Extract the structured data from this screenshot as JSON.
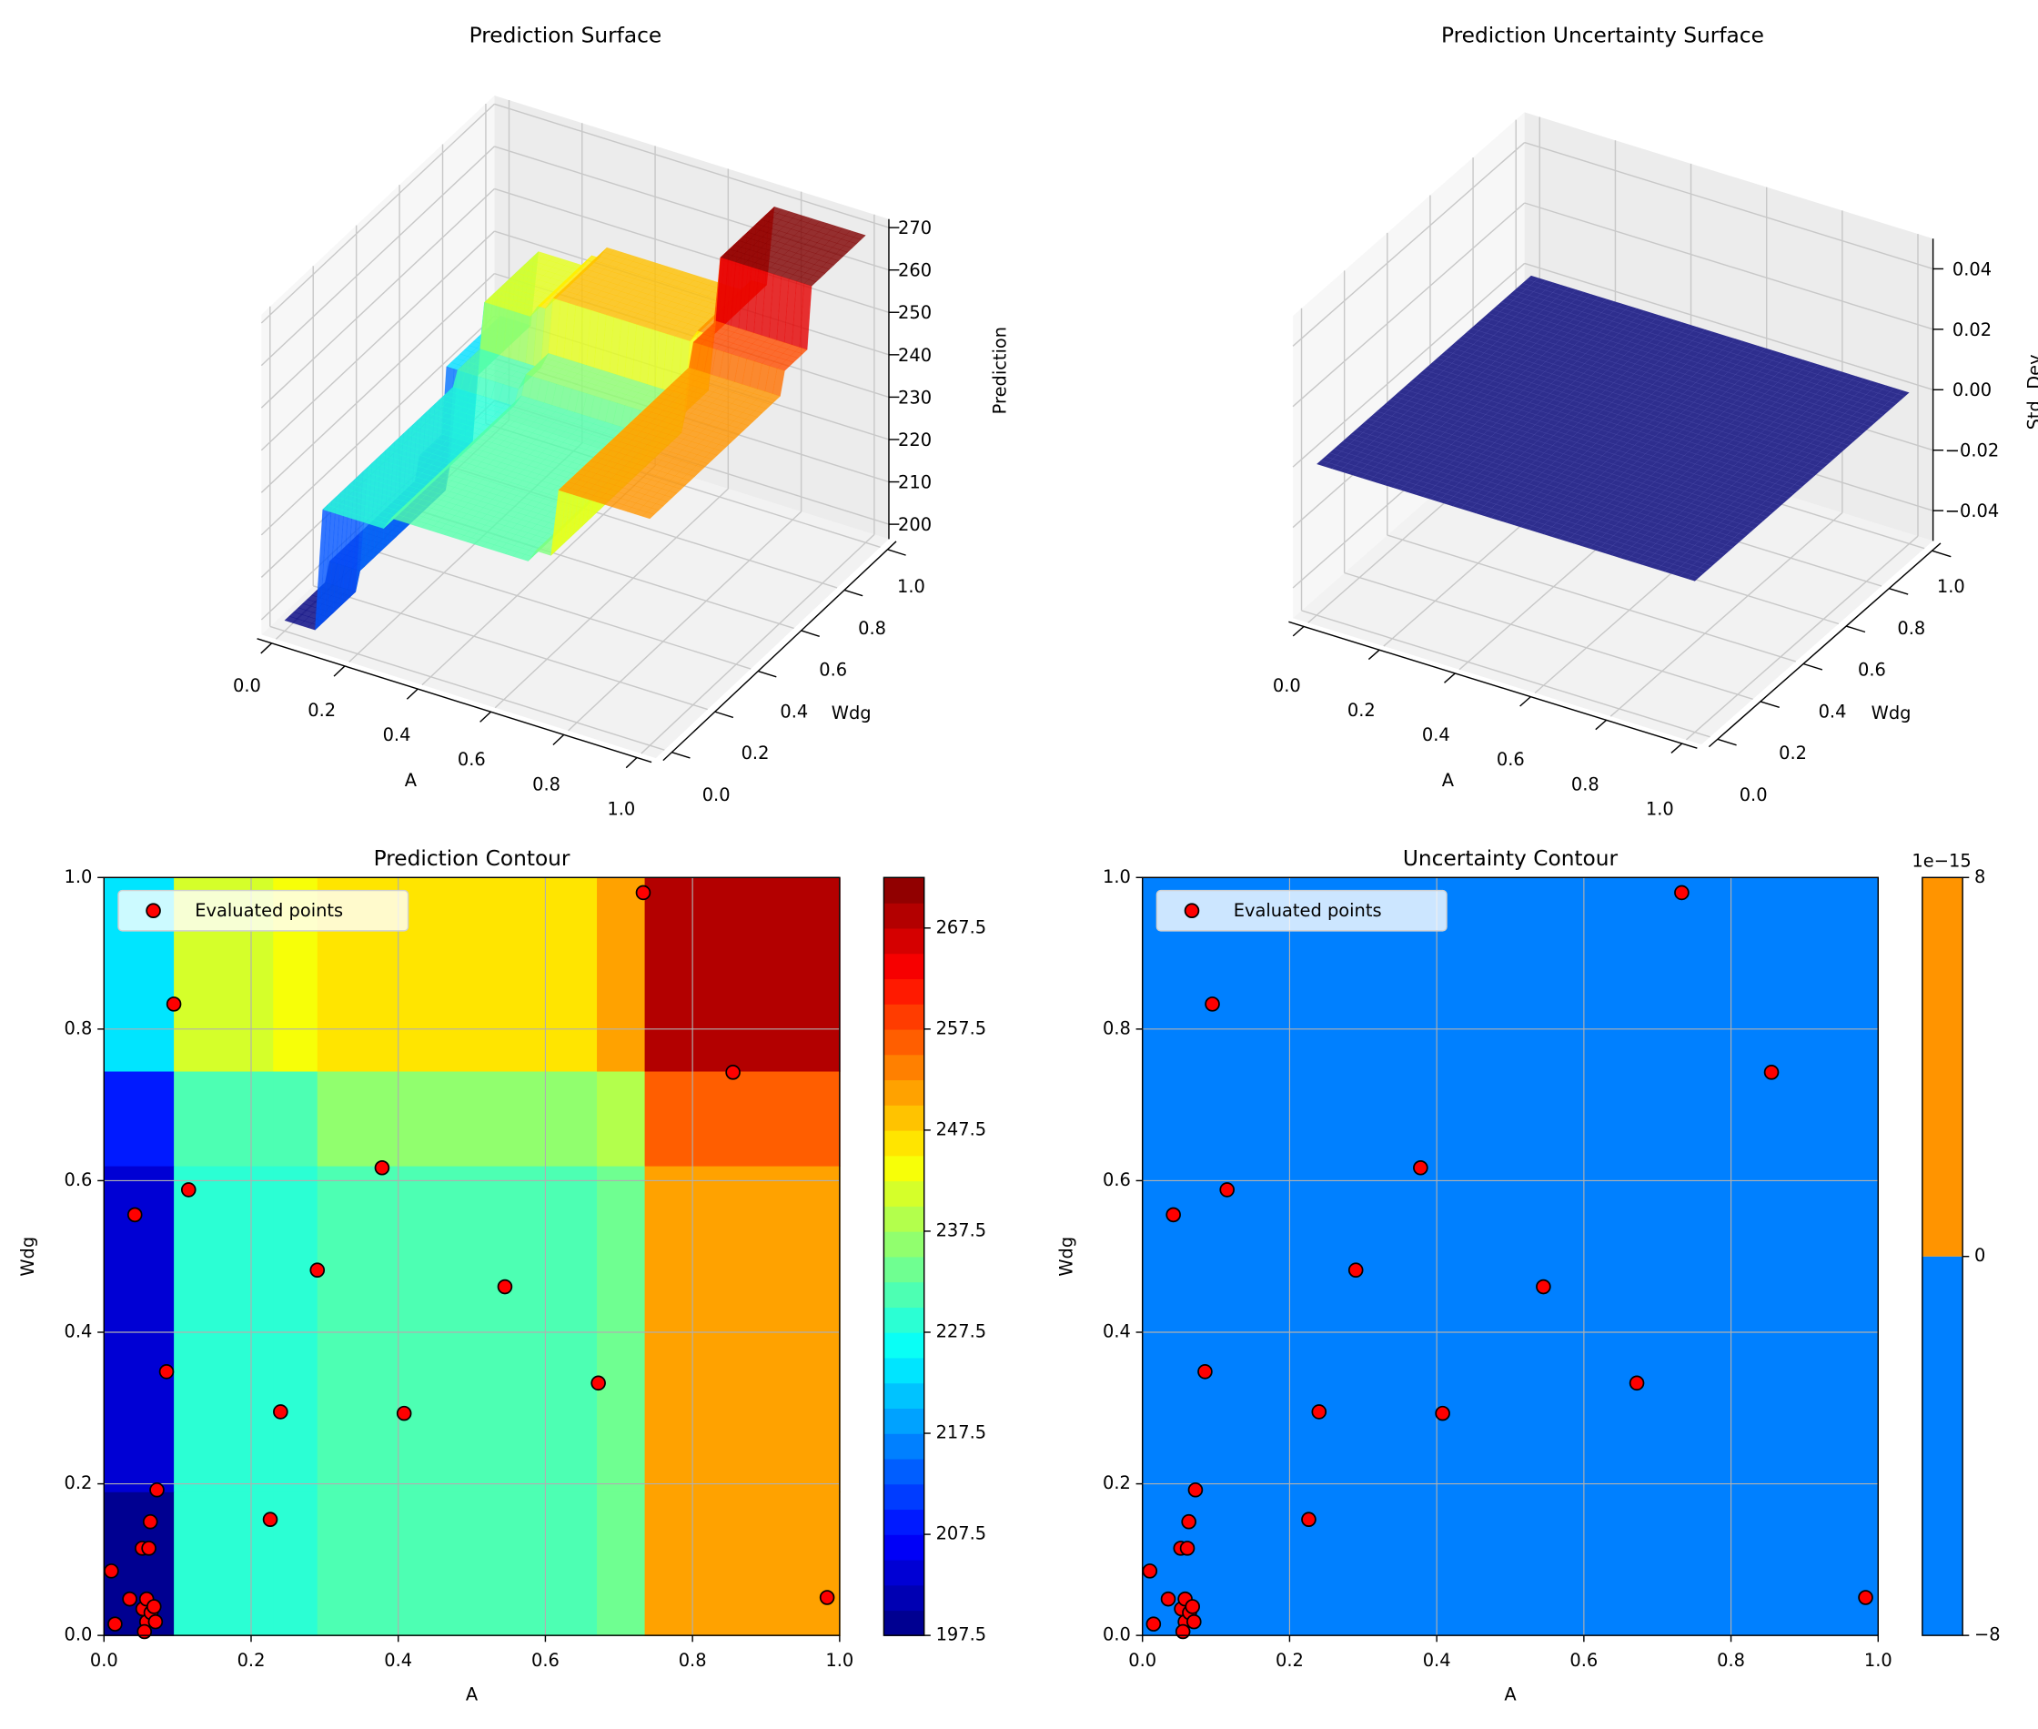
{
  "chart_data": [
    {
      "type": "surface",
      "title": "Prediction Surface",
      "xlabel": "A",
      "ylabel": "Wdg",
      "zlabel": "Prediction",
      "xticks": [
        "0.0",
        "0.2",
        "0.4",
        "0.6",
        "0.8",
        "1.0"
      ],
      "yticks": [
        "0.0",
        "0.2",
        "0.4",
        "0.6",
        "0.8",
        "1.0"
      ],
      "zticks": [
        "200",
        "210",
        "220",
        "230",
        "240",
        "250",
        "260",
        "270"
      ],
      "zlim": [
        196.5,
        272
      ],
      "colormap": "jet",
      "alpha": 0.8,
      "grid": true,
      "surface": {
        "A_breaks": [
          0,
          0.095,
          0.23,
          0.29,
          0.67,
          0.735,
          1.0
        ],
        "Wdg_breaks": [
          0,
          0.19,
          0.62,
          0.745,
          1.0
        ],
        "values": [
          [
            199,
            228,
            228,
            231,
            234,
            250
          ],
          [
            203,
            228,
            228,
            231,
            234,
            250
          ],
          [
            208,
            231,
            231,
            235,
            238,
            255
          ],
          [
            223,
            241,
            244,
            247,
            250,
            269
          ]
        ]
      }
    },
    {
      "type": "surface",
      "title": "Prediction Uncertainty Surface",
      "xlabel": "A",
      "ylabel": "Wdg",
      "zlabel": "Std. Dev.",
      "xticks": [
        "0.0",
        "0.2",
        "0.4",
        "0.6",
        "0.8",
        "1.0"
      ],
      "yticks": [
        "0.0",
        "0.2",
        "0.4",
        "0.6",
        "0.8",
        "1.0"
      ],
      "zticks": [
        "−0.04",
        "−0.02",
        "0.00",
        "0.02",
        "0.04"
      ],
      "zlim": [
        -0.05,
        0.05
      ],
      "value": 0.0,
      "color": "#2e2e8e",
      "grid": true
    },
    {
      "type": "contour",
      "title": "Prediction Contour",
      "xlabel": "A",
      "ylabel": "Wdg",
      "xlim": [
        0,
        1
      ],
      "ylim": [
        0,
        1
      ],
      "xticks": [
        "0.0",
        "0.2",
        "0.4",
        "0.6",
        "0.8",
        "1.0"
      ],
      "yticks": [
        "0.0",
        "0.2",
        "0.4",
        "0.6",
        "0.8",
        "1.0"
      ],
      "grid": true,
      "colormap": "jet",
      "levels": {
        "min": 197.5,
        "max": 272.5,
        "step": 2.5
      },
      "colorbar_ticks": [
        "197.5",
        "207.5",
        "217.5",
        "227.5",
        "237.5",
        "247.5",
        "257.5",
        "267.5"
      ],
      "legend": {
        "label": "Evaluated points",
        "position": "upper-left"
      },
      "point_color": "#ff0000"
    },
    {
      "type": "contour",
      "title": "Uncertainty Contour",
      "xlabel": "A",
      "ylabel": "Wdg",
      "xlim": [
        0,
        1
      ],
      "ylim": [
        0,
        1
      ],
      "xticks": [
        "0.0",
        "0.2",
        "0.4",
        "0.6",
        "0.8",
        "1.0"
      ],
      "yticks": [
        "0.0",
        "0.2",
        "0.4",
        "0.6",
        "0.8",
        "1.0"
      ],
      "grid": true,
      "fill_color": "#0080ff",
      "colorbar_colors": [
        "#0080ff",
        "#ff9400"
      ],
      "colorbar_ticks": [
        "−8",
        "0",
        "8"
      ],
      "colorbar_offset": "1e−15",
      "legend": {
        "label": "Evaluated points",
        "position": "upper-left"
      },
      "point_color": "#ff0000"
    }
  ],
  "points": [
    [
      0.01,
      0.085
    ],
    [
      0.015,
      0.015
    ],
    [
      0.035,
      0.048
    ],
    [
      0.042,
      0.555
    ],
    [
      0.052,
      0.115
    ],
    [
      0.061,
      0.115
    ],
    [
      0.053,
      0.035
    ],
    [
      0.058,
      0.048
    ],
    [
      0.058,
      0.018
    ],
    [
      0.055,
      0.005
    ],
    [
      0.064,
      0.03
    ],
    [
      0.063,
      0.15
    ],
    [
      0.068,
      0.038
    ],
    [
      0.07,
      0.018
    ],
    [
      0.072,
      0.192
    ],
    [
      0.085,
      0.348
    ],
    [
      0.095,
      0.833
    ],
    [
      0.115,
      0.588
    ],
    [
      0.226,
      0.153
    ],
    [
      0.24,
      0.295
    ],
    [
      0.29,
      0.482
    ],
    [
      0.378,
      0.617
    ],
    [
      0.408,
      0.293
    ],
    [
      0.545,
      0.46
    ],
    [
      0.672,
      0.333
    ],
    [
      0.733,
      0.98
    ],
    [
      0.855,
      0.743
    ],
    [
      0.983,
      0.05
    ]
  ]
}
